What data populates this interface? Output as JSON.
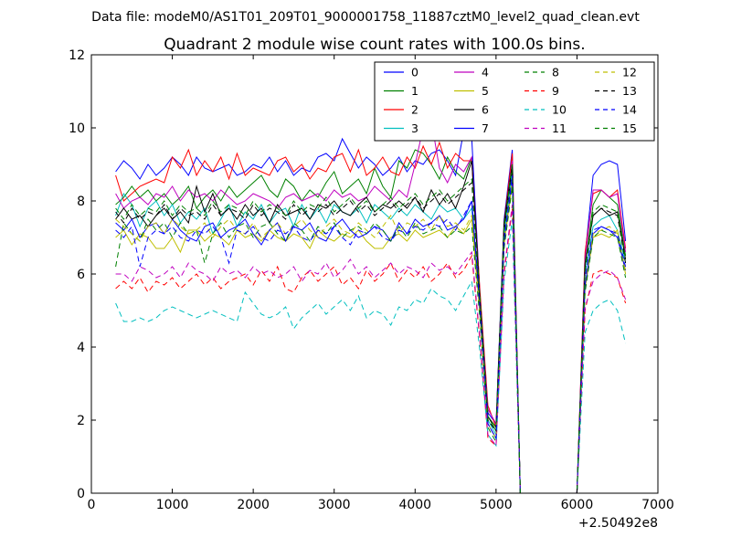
{
  "chart_data": {
    "type": "line",
    "suptitle": "Data file: modeM0/AS1T01_209T01_9000001758_11887cztM0_level2_quad_clean.evt",
    "title": "Quadrant 2 module wise count rates with 100.0s bins.",
    "xlabel": "",
    "ylabel": "",
    "x_offset_label": "+2.50492e8",
    "xlim": [
      0,
      7000
    ],
    "ylim": [
      0,
      12
    ],
    "xticks": [
      0,
      1000,
      2000,
      3000,
      4000,
      5000,
      6000,
      7000
    ],
    "yticks": [
      0,
      2,
      4,
      6,
      8,
      10,
      12
    ],
    "grid": false,
    "legend_position": "top-right",
    "legend_columns": 4,
    "x": [
      300,
      400,
      500,
      600,
      700,
      800,
      900,
      1000,
      1100,
      1200,
      1300,
      1400,
      1500,
      1600,
      1700,
      1800,
      1900,
      2000,
      2100,
      2200,
      2300,
      2400,
      2500,
      2600,
      2700,
      2800,
      2900,
      3000,
      3100,
      3200,
      3300,
      3400,
      3500,
      3600,
      3700,
      3800,
      3900,
      4000,
      4100,
      4200,
      4300,
      4400,
      4500,
      4600,
      4700,
      4800,
      4900,
      5000,
      5100,
      5200,
      5300,
      5400,
      5500,
      5600,
      5700,
      5800,
      5900,
      6000,
      6100,
      6200,
      6300,
      6400,
      6500,
      6600
    ],
    "series": [
      {
        "name": "0",
        "color": "#0000ff",
        "dash": "solid",
        "values": [
          8.8,
          9.1,
          8.9,
          8.6,
          9.0,
          8.7,
          8.9,
          9.2,
          9.0,
          8.7,
          9.2,
          8.9,
          8.8,
          8.9,
          9.0,
          8.7,
          8.8,
          9.0,
          8.9,
          9.2,
          8.8,
          9.1,
          8.7,
          8.9,
          8.8,
          9.2,
          9.3,
          9.1,
          9.7,
          9.3,
          8.9,
          9.2,
          9.0,
          8.7,
          8.9,
          9.2,
          8.8,
          9.1,
          9.0,
          9.3,
          9.4,
          9.1,
          8.7,
          9.9,
          9.7,
          5.5,
          2.2,
          1.9,
          7.5,
          9.4,
          0,
          0,
          0,
          0,
          0,
          0,
          0,
          0,
          6.5,
          8.7,
          9.0,
          9.1,
          9.0,
          6.9
        ]
      },
      {
        "name": "1",
        "color": "#008000",
        "dash": "solid",
        "values": [
          7.9,
          8.1,
          8.4,
          8.1,
          8.3,
          8.0,
          8.2,
          7.9,
          8.1,
          8.4,
          7.8,
          8.1,
          8.3,
          8.0,
          8.4,
          8.1,
          8.3,
          8.5,
          8.7,
          8.3,
          8.1,
          8.6,
          8.4,
          8.0,
          8.3,
          8.1,
          8.5,
          8.8,
          8.2,
          8.4,
          8.6,
          8.2,
          8.9,
          8.4,
          8.1,
          9.1,
          8.9,
          9.4,
          9.3,
          9.0,
          8.6,
          9.2,
          8.8,
          8.6,
          9.2,
          5.3,
          2.1,
          1.7,
          7.2,
          8.9,
          0,
          0,
          0,
          0,
          0,
          0,
          0,
          0,
          6.2,
          7.9,
          8.3,
          8.1,
          7.9,
          6.5
        ]
      },
      {
        "name": "2",
        "color": "#ff0000",
        "dash": "solid",
        "values": [
          8.7,
          8.0,
          8.2,
          8.4,
          8.5,
          8.6,
          8.5,
          9.2,
          8.9,
          9.4,
          8.7,
          9.1,
          8.8,
          9.2,
          8.6,
          9.3,
          8.7,
          8.9,
          8.8,
          8.7,
          9.1,
          9.2,
          8.8,
          9.0,
          8.6,
          8.9,
          8.8,
          9.2,
          9.3,
          8.8,
          9.4,
          8.7,
          8.9,
          9.2,
          8.8,
          8.7,
          9.2,
          8.9,
          9.5,
          9.0,
          9.6,
          8.9,
          9.3,
          9.1,
          9.1,
          5.6,
          2.4,
          1.8,
          7.4,
          9.3,
          0,
          0,
          0,
          0,
          0,
          0,
          0,
          0,
          6.6,
          8.2,
          8.3,
          8.1,
          8.3,
          6.7
        ]
      },
      {
        "name": "3",
        "color": "#00bfbf",
        "dash": "solid",
        "values": [
          7.6,
          8.2,
          7.9,
          7.3,
          7.8,
          8.0,
          7.6,
          7.9,
          7.4,
          7.7,
          7.5,
          7.8,
          7.1,
          7.5,
          7.9,
          7.3,
          7.7,
          7.5,
          7.9,
          7.4,
          7.7,
          7.8,
          7.3,
          7.9,
          7.5,
          7.8,
          7.4,
          7.9,
          7.7,
          7.6,
          7.8,
          7.4,
          7.9,
          7.7,
          7.5,
          7.8,
          7.6,
          7.9,
          7.7,
          7.5,
          7.9,
          7.7,
          7.8,
          7.5,
          7.8,
          5.2,
          2.0,
          1.6,
          7.1,
          8.8,
          0,
          0,
          0,
          0,
          0,
          0,
          0,
          0,
          6.0,
          7.3,
          7.5,
          7.6,
          7.2,
          6.3
        ]
      },
      {
        "name": "4",
        "color": "#bf00bf",
        "dash": "solid",
        "values": [
          8.2,
          7.8,
          8.0,
          8.1,
          7.9,
          8.2,
          8.1,
          8.4,
          8.0,
          8.3,
          8.1,
          8.2,
          8.0,
          8.3,
          8.1,
          7.9,
          8.0,
          8.2,
          8.1,
          8.0,
          7.8,
          8.1,
          8.2,
          8.0,
          8.1,
          8.2,
          8.0,
          8.3,
          8.1,
          8.2,
          8.0,
          8.1,
          8.4,
          8.2,
          8.0,
          8.3,
          8.1,
          9.0,
          10.0,
          10.2,
          8.9,
          8.5,
          9.0,
          8.8,
          9.2,
          5.4,
          2.3,
          1.9,
          7.3,
          9.1,
          0,
          0,
          0,
          0,
          0,
          0,
          0,
          0,
          6.4,
          8.3,
          8.3,
          8.1,
          8.2,
          6.6
        ]
      },
      {
        "name": "5",
        "color": "#bfbf00",
        "dash": "solid",
        "values": [
          7.0,
          7.2,
          6.8,
          7.1,
          7.0,
          6.7,
          6.7,
          7.0,
          6.6,
          7.2,
          7.2,
          6.9,
          7.1,
          7.0,
          6.8,
          7.2,
          7.0,
          7.1,
          6.9,
          7.2,
          7.0,
          6.9,
          7.1,
          7.0,
          6.7,
          7.2,
          7.0,
          6.9,
          7.1,
          7.0,
          7.2,
          6.9,
          6.7,
          6.7,
          7.0,
          7.1,
          6.9,
          7.2,
          7.0,
          7.1,
          7.2,
          7.0,
          7.3,
          7.1,
          7.5,
          4.9,
          1.9,
          1.5,
          6.8,
          8.5,
          0,
          0,
          0,
          0,
          0,
          0,
          0,
          0,
          5.6,
          7.0,
          7.1,
          7.0,
          7.2,
          6.0
        ]
      },
      {
        "name": "6",
        "color": "#000000",
        "dash": "solid",
        "values": [
          7.5,
          7.8,
          7.5,
          7.6,
          7.3,
          7.6,
          7.8,
          7.5,
          7.7,
          7.4,
          8.4,
          7.7,
          8.2,
          7.6,
          7.8,
          7.5,
          7.9,
          7.6,
          7.8,
          7.4,
          7.9,
          7.6,
          7.7,
          7.8,
          7.5,
          7.9,
          7.8,
          8.0,
          7.7,
          7.6,
          7.9,
          8.1,
          7.7,
          7.9,
          7.8,
          8.0,
          7.8,
          8.1,
          7.7,
          8.3,
          7.9,
          8.2,
          7.8,
          8.4,
          9.1,
          5.4,
          2.1,
          1.8,
          7.4,
          9.0,
          0,
          0,
          0,
          0,
          0,
          0,
          0,
          0,
          6.3,
          7.6,
          7.8,
          7.6,
          7.7,
          6.4
        ]
      },
      {
        "name": "7",
        "color": "#0000ff",
        "dash": "solid",
        "values": [
          7.4,
          7.2,
          7.5,
          7.0,
          7.3,
          7.4,
          7.1,
          7.5,
          7.2,
          7.0,
          6.9,
          7.3,
          7.4,
          7.0,
          7.2,
          7.3,
          7.5,
          7.1,
          6.8,
          7.2,
          7.4,
          6.9,
          7.3,
          7.2,
          7.4,
          7.0,
          6.9,
          7.3,
          7.5,
          7.2,
          7.0,
          7.1,
          7.3,
          7.2,
          6.9,
          7.4,
          7.1,
          7.5,
          7.3,
          7.4,
          7.6,
          7.2,
          7.3,
          7.5,
          8.0,
          5.1,
          1.9,
          1.5,
          6.9,
          8.6,
          0,
          0,
          0,
          0,
          0,
          0,
          0,
          0,
          5.7,
          7.1,
          7.3,
          7.2,
          7.0,
          6.1
        ]
      },
      {
        "name": "8",
        "color": "#008000",
        "dash": "dashed",
        "values": [
          6.2,
          7.4,
          7.1,
          6.9,
          7.5,
          7.2,
          7.4,
          7.0,
          7.4,
          7.1,
          7.2,
          6.3,
          7.1,
          7.4,
          7.0,
          7.3,
          7.4,
          7.0,
          7.3,
          7.4,
          7.1,
          6.9,
          7.4,
          7.2,
          6.9,
          7.3,
          7.1,
          7.4,
          7.0,
          7.2,
          7.3,
          7.1,
          7.4,
          7.2,
          6.9,
          7.3,
          7.0,
          7.4,
          7.1,
          7.2,
          7.3,
          7.0,
          7.2,
          7.1,
          7.3,
          4.8,
          1.8,
          1.4,
          6.7,
          8.4,
          0,
          0,
          0,
          0,
          0,
          0,
          0,
          0,
          5.5,
          7.0,
          7.2,
          7.1,
          7.0,
          5.9
        ]
      },
      {
        "name": "9",
        "color": "#ff0000",
        "dash": "dashed",
        "values": [
          5.6,
          5.8,
          5.6,
          5.9,
          5.5,
          5.8,
          5.7,
          5.9,
          5.6,
          5.8,
          6.0,
          5.7,
          5.9,
          5.6,
          5.8,
          5.9,
          6.0,
          5.7,
          6.1,
          5.8,
          6.2,
          5.6,
          5.5,
          5.9,
          6.1,
          5.8,
          6.0,
          6.2,
          5.7,
          5.9,
          5.6,
          6.1,
          5.8,
          6.0,
          6.3,
          5.8,
          6.1,
          5.9,
          6.2,
          5.8,
          6.0,
          6.3,
          5.9,
          6.1,
          6.5,
          4.2,
          1.5,
          1.3,
          6.0,
          7.8,
          0,
          0,
          0,
          0,
          0,
          0,
          0,
          0,
          5.0,
          6.0,
          6.1,
          6.0,
          5.9,
          5.2
        ]
      },
      {
        "name": "10",
        "color": "#00bfbf",
        "dash": "dashed",
        "values": [
          5.2,
          4.7,
          4.7,
          4.8,
          4.7,
          4.8,
          5.0,
          5.1,
          5.0,
          4.9,
          4.8,
          4.9,
          5.0,
          4.9,
          4.8,
          4.7,
          5.5,
          5.2,
          4.9,
          4.8,
          4.9,
          5.1,
          4.5,
          4.8,
          5.0,
          5.2,
          4.9,
          5.1,
          5.3,
          5.0,
          5.4,
          4.8,
          5.0,
          4.9,
          4.6,
          5.1,
          5.0,
          5.3,
          5.2,
          5.6,
          5.4,
          5.3,
          5.0,
          5.4,
          5.8,
          3.9,
          1.6,
          1.3,
          5.8,
          7.5,
          0,
          0,
          0,
          0,
          0,
          0,
          0,
          0,
          4.4,
          5.0,
          5.2,
          5.3,
          5.0,
          4.1
        ]
      },
      {
        "name": "11",
        "color": "#bf00bf",
        "dash": "dashed",
        "values": [
          6.0,
          6.0,
          5.8,
          6.2,
          6.1,
          5.9,
          6.0,
          6.2,
          5.9,
          6.3,
          6.1,
          6.0,
          5.8,
          6.2,
          6.0,
          6.1,
          5.9,
          6.2,
          6.0,
          6.1,
          5.9,
          6.0,
          6.2,
          5.8,
          6.1,
          6.0,
          6.3,
          5.9,
          6.1,
          6.4,
          6.0,
          6.2,
          5.9,
          6.1,
          6.3,
          6.0,
          6.2,
          6.1,
          5.9,
          6.3,
          6.1,
          6.2,
          6.0,
          6.3,
          6.6,
          4.3,
          1.6,
          1.3,
          6.1,
          7.9,
          0,
          0,
          0,
          0,
          0,
          0,
          0,
          0,
          5.1,
          5.8,
          6.0,
          6.1,
          5.9,
          5.3
        ]
      },
      {
        "name": "12",
        "color": "#bfbf00",
        "dash": "dashed",
        "values": [
          7.5,
          7.3,
          7.1,
          6.9,
          7.3,
          7.4,
          7.1,
          7.5,
          7.3,
          7.1,
          7.2,
          7.4,
          7.0,
          7.3,
          7.5,
          7.2,
          7.1,
          7.4,
          7.0,
          7.2,
          7.4,
          7.1,
          7.3,
          7.5,
          7.2,
          7.0,
          7.3,
          7.5,
          7.2,
          7.1,
          7.4,
          7.2,
          7.0,
          7.3,
          7.6,
          7.1,
          7.4,
          7.3,
          7.5,
          7.2,
          7.6,
          7.3,
          7.4,
          7.2,
          7.6,
          5.0,
          1.9,
          1.5,
          6.9,
          8.6,
          0,
          0,
          0,
          0,
          0,
          0,
          0,
          0,
          5.8,
          7.1,
          7.2,
          7.3,
          7.1,
          6.1
        ]
      },
      {
        "name": "13",
        "color": "#000000",
        "dash": "dashed",
        "values": [
          7.7,
          7.4,
          7.8,
          7.5,
          7.7,
          7.6,
          7.9,
          7.5,
          7.8,
          7.6,
          7.7,
          7.5,
          7.9,
          7.6,
          7.8,
          7.7,
          7.5,
          7.9,
          7.6,
          7.8,
          7.7,
          7.5,
          7.9,
          7.6,
          7.8,
          7.7,
          7.9,
          7.6,
          7.8,
          8.0,
          7.7,
          7.9,
          7.6,
          7.8,
          8.0,
          7.7,
          7.9,
          8.1,
          7.8,
          8.0,
          8.2,
          7.9,
          8.1,
          8.3,
          8.5,
          5.3,
          2.0,
          1.7,
          7.2,
          8.9,
          0,
          0,
          0,
          0,
          0,
          0,
          0,
          0,
          6.1,
          7.6,
          7.8,
          7.7,
          7.6,
          6.3
        ]
      },
      {
        "name": "14",
        "color": "#0000ff",
        "dash": "dashed",
        "values": [
          7.2,
          7.0,
          7.3,
          6.2,
          7.0,
          7.2,
          7.1,
          7.3,
          7.0,
          6.9,
          7.2,
          7.1,
          7.3,
          7.0,
          6.3,
          7.2,
          7.1,
          7.3,
          7.0,
          6.9,
          7.2,
          7.1,
          7.3,
          7.0,
          6.9,
          7.2,
          7.1,
          7.3,
          7.0,
          6.8,
          7.2,
          7.1,
          7.3,
          7.0,
          6.9,
          7.2,
          7.1,
          7.3,
          7.2,
          7.4,
          7.3,
          7.5,
          7.2,
          7.6,
          8.0,
          5.1,
          1.9,
          1.5,
          6.9,
          8.7,
          0,
          0,
          0,
          0,
          0,
          0,
          0,
          0,
          5.9,
          7.2,
          7.3,
          7.2,
          7.1,
          6.2
        ]
      },
      {
        "name": "15",
        "color": "#008000",
        "dash": "dashed",
        "values": [
          7.8,
          7.5,
          7.9,
          7.6,
          7.8,
          7.7,
          8.0,
          7.6,
          7.9,
          7.7,
          7.8,
          7.6,
          8.0,
          7.7,
          7.9,
          7.8,
          7.6,
          8.0,
          7.7,
          7.9,
          7.8,
          7.6,
          8.0,
          7.7,
          7.9,
          7.8,
          8.1,
          7.7,
          7.9,
          8.1,
          7.8,
          8.0,
          7.7,
          7.9,
          8.1,
          7.8,
          8.0,
          8.2,
          7.9,
          8.1,
          8.3,
          8.0,
          8.2,
          8.4,
          8.6,
          5.4,
          2.1,
          1.8,
          7.3,
          9.0,
          0,
          0,
          0,
          0,
          0,
          0,
          0,
          0,
          6.2,
          7.7,
          7.9,
          7.8,
          7.7,
          6.4
        ]
      }
    ]
  }
}
